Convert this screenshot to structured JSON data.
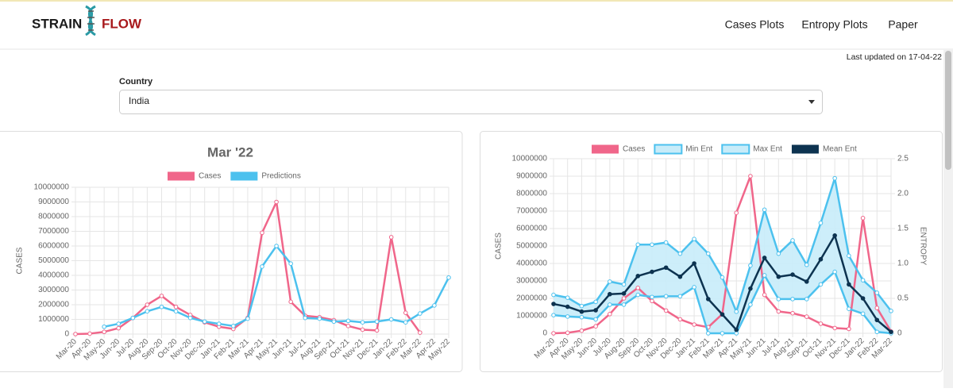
{
  "header": {
    "logo_left": "STRAIN",
    "logo_right": "FLOW",
    "nav": [
      "Cases Plots",
      "Entropy Plots",
      "Paper"
    ],
    "last_updated": "Last updated on 17-04-22"
  },
  "country": {
    "label": "Country",
    "selected": "India"
  },
  "chart_data": [
    {
      "type": "line",
      "title": "Mar '22",
      "y_label": "CASES",
      "categories": [
        "Mar-20",
        "Apr-20",
        "May-20",
        "Jun-20",
        "Jul-20",
        "Aug-20",
        "Sep-20",
        "Oct-20",
        "Nov-20",
        "Dec-20",
        "Jan-21",
        "Feb-21",
        "Mar-21",
        "Apr-21",
        "May-21",
        "Jun-21",
        "Jul-21",
        "Aug-21",
        "Sep-21",
        "Oct-21",
        "Nov-21",
        "Dec-21",
        "Jan-22",
        "Feb-22",
        "Mar-22",
        "Apr-22",
        "May-22"
      ],
      "ylim": [
        0,
        10000000
      ],
      "yticks": [
        0,
        1000000,
        2000000,
        3000000,
        4000000,
        5000000,
        6000000,
        7000000,
        8000000,
        9000000,
        10000000
      ],
      "grid": true,
      "series": [
        {
          "name": "Cases",
          "color": "#f0668a",
          "values": [
            0,
            30000,
            150000,
            400000,
            1100000,
            2000000,
            2600000,
            1850000,
            1300000,
            800000,
            500000,
            350000,
            1100000,
            6900000,
            9000000,
            2200000,
            1250000,
            1150000,
            950000,
            550000,
            300000,
            250000,
            6600000,
            1450000,
            100000,
            null,
            null
          ]
        },
        {
          "name": "Predictions",
          "color": "#4cc1ee",
          "values": [
            null,
            null,
            500000,
            700000,
            1100000,
            1550000,
            1850000,
            1550000,
            1100000,
            850000,
            700000,
            550000,
            1050000,
            4600000,
            6000000,
            4800000,
            1100000,
            1050000,
            850000,
            900000,
            800000,
            850000,
            1000000,
            800000,
            1400000,
            1950000,
            3850000
          ]
        }
      ]
    },
    {
      "type": "line",
      "y_label": "CASES",
      "y2_label": "ENTROPY",
      "categories": [
        "Mar-20",
        "Apr-20",
        "May-20",
        "Jun-20",
        "Jul-20",
        "Aug-20",
        "Sep-20",
        "Oct-20",
        "Nov-20",
        "Dec-20",
        "Jan-21",
        "Feb-21",
        "Mar-21",
        "Apr-21",
        "May-21",
        "Jun-21",
        "Jul-21",
        "Aug-21",
        "Sep-21",
        "Oct-21",
        "Nov-21",
        "Dec-21",
        "Jan-22",
        "Feb-22",
        "Mar-22"
      ],
      "ylim": [
        0,
        10000000
      ],
      "yticks": [
        0,
        1000000,
        2000000,
        3000000,
        4000000,
        5000000,
        6000000,
        7000000,
        8000000,
        9000000,
        10000000
      ],
      "y2lim": [
        0,
        2.5
      ],
      "y2ticks": [
        0,
        0.5,
        {
          "value": 1,
          "label": "1.0"
        },
        1.5,
        {
          "value": 2,
          "label": "2.0"
        },
        2.5
      ],
      "grid": true,
      "series": [
        {
          "name": "Cases",
          "color": "#f0668a",
          "values": [
            0,
            30000,
            150000,
            400000,
            1100000,
            2000000,
            2600000,
            1850000,
            1300000,
            800000,
            500000,
            350000,
            1100000,
            6900000,
            9000000,
            2200000,
            1250000,
            1150000,
            950000,
            550000,
            300000,
            250000,
            6600000,
            1450000,
            100000
          ]
        },
        {
          "name": "Min Ent",
          "color": "#4cc1ee",
          "fill": "#c8ecf9",
          "axis": "y2",
          "values": [
            0.26,
            0.24,
            0.23,
            0.2,
            0.41,
            0.41,
            0.55,
            0.52,
            0.53,
            0.53,
            0.66,
            0,
            0,
            0,
            0.41,
            0.83,
            0.49,
            0.49,
            0.49,
            0.7,
            0.88,
            0.35,
            0.28,
            0.02,
            0
          ]
        },
        {
          "name": "Max Ent",
          "color": "#4cc1ee",
          "fill": "#c8ecf9",
          "axis": "y2",
          "values": [
            0.55,
            0.51,
            0.39,
            0.45,
            0.74,
            0.7,
            1.27,
            1.27,
            1.3,
            1.14,
            1.35,
            1.14,
            0.8,
            0.31,
            0.97,
            1.77,
            1.14,
            1.33,
            0.98,
            1.58,
            2.22,
            1.11,
            0.76,
            0.58,
            0.32
          ]
        },
        {
          "name": "Mean Ent",
          "color": "#0d3350",
          "axis": "y2",
          "values": [
            0.42,
            0.38,
            0.31,
            0.33,
            0.56,
            0.57,
            0.82,
            0.88,
            0.94,
            0.81,
            1.0,
            0.49,
            0.27,
            0.05,
            0.64,
            1.08,
            0.81,
            0.84,
            0.74,
            1.06,
            1.4,
            0.7,
            0.5,
            0.19,
            0.02
          ]
        }
      ]
    }
  ]
}
